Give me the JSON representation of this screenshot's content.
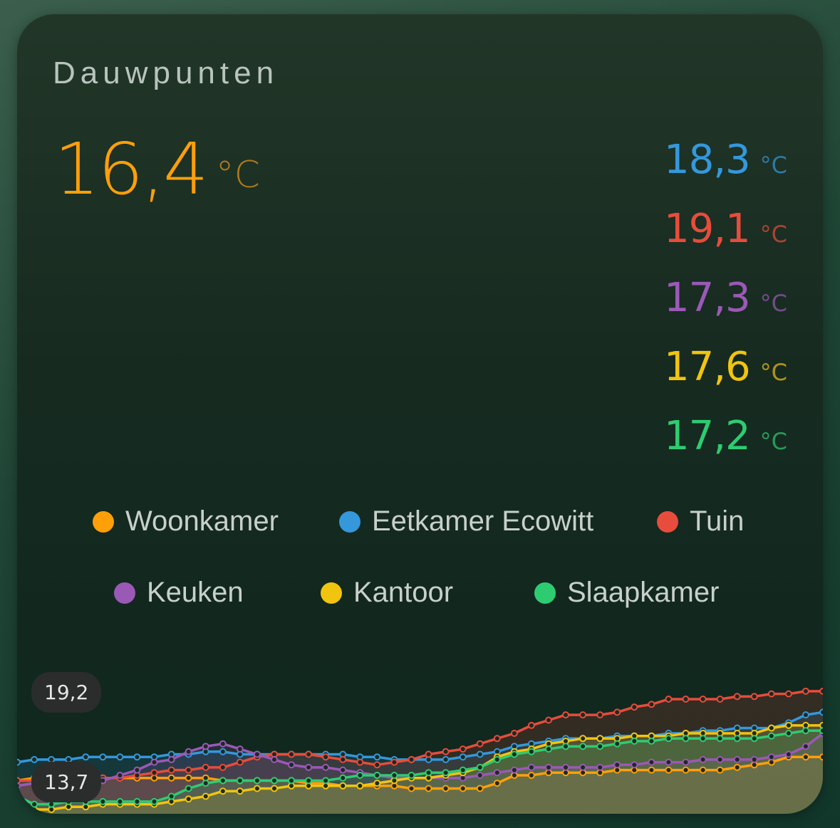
{
  "card": {
    "title": "Dauwpunten",
    "main": {
      "value": "16,4",
      "unit": "°C",
      "color": "#ff9f0a"
    }
  },
  "sensors": [
    {
      "name": "Woonkamer",
      "color": "#ff9f0a"
    },
    {
      "name": "Eetkamer Ecowitt",
      "value": "18,3",
      "unit": "°C",
      "color": "#3498db"
    },
    {
      "name": "Tuin",
      "value": "19,1",
      "unit": "°C",
      "color": "#e74c3c"
    },
    {
      "name": "Keuken",
      "value": "17,3",
      "unit": "°C",
      "color": "#9b59b6"
    },
    {
      "name": "Kantoor",
      "value": "17,6",
      "unit": "°C",
      "color": "#f1c40f"
    },
    {
      "name": "Slaapkamer",
      "value": "17,2",
      "unit": "°C",
      "color": "#2ecc71"
    }
  ],
  "chart_data": {
    "type": "area",
    "ylim": [
      13.7,
      19.2
    ],
    "y_labels": {
      "max": "19,2",
      "min": "13,7"
    },
    "points_per_series": 48,
    "series": [
      {
        "name": "Woonkamer",
        "color": "#ff9f0a",
        "values": [
          14.8,
          14.9,
          14.9,
          14.9,
          14.9,
          14.9,
          14.9,
          14.9,
          14.9,
          14.9,
          14.9,
          14.9,
          14.8,
          14.8,
          14.8,
          14.8,
          14.8,
          14.7,
          14.7,
          14.6,
          14.6,
          14.6,
          14.6,
          14.5,
          14.5,
          14.5,
          14.5,
          14.5,
          14.7,
          15.0,
          15.0,
          15.1,
          15.1,
          15.1,
          15.1,
          15.2,
          15.2,
          15.2,
          15.2,
          15.2,
          15.2,
          15.2,
          15.3,
          15.4,
          15.5,
          15.7,
          15.7,
          15.7
        ]
      },
      {
        "name": "Eetkamer Ecowitt",
        "color": "#3498db",
        "values": [
          15.5,
          15.6,
          15.6,
          15.6,
          15.7,
          15.7,
          15.7,
          15.7,
          15.7,
          15.8,
          15.8,
          15.9,
          15.9,
          15.8,
          15.8,
          15.8,
          15.8,
          15.8,
          15.8,
          15.8,
          15.7,
          15.7,
          15.6,
          15.6,
          15.6,
          15.6,
          15.7,
          15.8,
          15.9,
          16.1,
          16.2,
          16.3,
          16.4,
          16.4,
          16.4,
          16.5,
          16.5,
          16.5,
          16.6,
          16.6,
          16.7,
          16.7,
          16.8,
          16.8,
          16.8,
          17.0,
          17.3,
          17.4
        ]
      },
      {
        "name": "Tuin",
        "color": "#e74c3c",
        "values": [
          14.8,
          14.8,
          14.8,
          14.8,
          14.9,
          14.9,
          14.9,
          15.0,
          15.1,
          15.2,
          15.2,
          15.3,
          15.3,
          15.5,
          15.7,
          15.8,
          15.8,
          15.8,
          15.7,
          15.6,
          15.5,
          15.4,
          15.5,
          15.6,
          15.8,
          15.9,
          16.0,
          16.2,
          16.4,
          16.6,
          16.9,
          17.1,
          17.3,
          17.3,
          17.3,
          17.4,
          17.6,
          17.7,
          17.9,
          17.9,
          17.9,
          17.9,
          18.0,
          18.0,
          18.1,
          18.1,
          18.2,
          18.2
        ]
      },
      {
        "name": "Keuken",
        "color": "#9b59b6",
        "values": [
          14.6,
          14.7,
          14.7,
          14.8,
          14.8,
          14.8,
          15.0,
          15.2,
          15.5,
          15.6,
          15.9,
          16.1,
          16.2,
          16.0,
          15.8,
          15.6,
          15.4,
          15.3,
          15.3,
          15.2,
          15.1,
          15.0,
          14.9,
          14.9,
          14.9,
          14.9,
          14.9,
          15.0,
          15.1,
          15.2,
          15.3,
          15.3,
          15.3,
          15.3,
          15.3,
          15.4,
          15.4,
          15.5,
          15.5,
          15.5,
          15.6,
          15.6,
          15.6,
          15.6,
          15.7,
          15.8,
          16.1,
          16.6
        ]
      },
      {
        "name": "Kantoor",
        "color": "#f1c40f",
        "values": [
          13.8,
          13.7,
          13.7,
          13.8,
          13.8,
          13.9,
          13.9,
          13.9,
          13.9,
          14.0,
          14.1,
          14.2,
          14.4,
          14.4,
          14.5,
          14.5,
          14.6,
          14.6,
          14.6,
          14.6,
          14.6,
          14.7,
          14.8,
          14.9,
          14.9,
          15.0,
          15.1,
          15.3,
          15.7,
          15.9,
          16.0,
          16.2,
          16.3,
          16.4,
          16.4,
          16.4,
          16.5,
          16.5,
          16.5,
          16.6,
          16.6,
          16.6,
          16.6,
          16.6,
          16.8,
          16.9,
          16.9,
          16.9
        ]
      },
      {
        "name": "Slaapkamer",
        "color": "#2ecc71",
        "values": [
          14.2,
          13.9,
          13.9,
          14.0,
          14.0,
          14.0,
          14.0,
          14.0,
          14.0,
          14.2,
          14.5,
          14.7,
          14.8,
          14.8,
          14.8,
          14.8,
          14.8,
          14.8,
          14.8,
          14.9,
          15.0,
          15.0,
          15.0,
          15.0,
          15.1,
          15.1,
          15.2,
          15.3,
          15.6,
          15.8,
          15.9,
          16.0,
          16.1,
          16.1,
          16.1,
          16.2,
          16.3,
          16.3,
          16.4,
          16.4,
          16.4,
          16.4,
          16.4,
          16.4,
          16.5,
          16.6,
          16.7,
          16.7
        ]
      }
    ]
  }
}
